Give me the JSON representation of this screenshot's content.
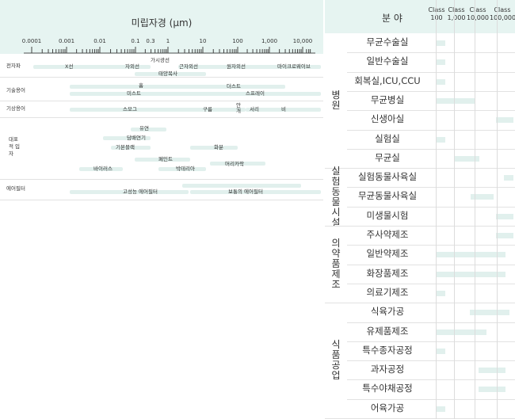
{
  "left_chart": {
    "title": "미립자경 (μm)",
    "scale": "log",
    "tick_labels": [
      "0.0001",
      "0.001",
      "0.01",
      "0.1",
      "0.3",
      "1",
      "10",
      "100",
      "1,000",
      "10,000"
    ],
    "categories": [
      "전자파",
      "기술용어",
      "기상용어",
      "대표적 입자",
      "에어필터"
    ],
    "labels": {
      "xray": "X선",
      "uv": "자외선",
      "visible": "가시광선",
      "infrared": "근자외선",
      "solar": "태양복사",
      "far_ir": "원자외선",
      "microwave": "마이크로웨이브",
      "fume": "흄",
      "dust": "더스트",
      "mist": "미스트",
      "spray": "스프레이",
      "smog": "스모그",
      "cloud": "구름",
      "fog": "안개",
      "frost": "서리",
      "rain": "비",
      "smoke": "유연",
      "tobacco": "담배연기",
      "carbon_black": "기본블랙",
      "pollen": "화분",
      "paint": "페인트",
      "hair": "머리카락",
      "bacteria": "박테리아",
      "virus": "바이러스",
      "hepa": "고성능 에어필터",
      "normal_filter": "보통의 에어필터"
    },
    "colors": {
      "band": "#e6f4f1",
      "bar": "#e1f0ed",
      "text": "#333333"
    }
  },
  "right_table": {
    "header_field": "분 야",
    "classes": [
      "Class\n100",
      "Class\n1,000",
      "Class\n10,000",
      "Class\n100,000"
    ],
    "groups": [
      {
        "label": "병\n원",
        "rows": [
          {
            "name": "무균수술실",
            "bar": [
              0,
              0.12
            ]
          },
          {
            "name": "일반수술실",
            "bar": [
              0,
              0.12
            ]
          },
          {
            "name": "회복실,ICU,CCU",
            "bar": [
              0,
              0.12
            ]
          },
          {
            "name": "무균병실",
            "bar": [
              0,
              0.5
            ]
          },
          {
            "name": "신생아실",
            "bar": [
              0.78,
              1
            ]
          },
          {
            "name": "실험실",
            "bar": [
              0,
              0.12
            ]
          },
          {
            "name": "무균실",
            "bar": [
              0.24,
              0.56
            ]
          }
        ]
      },
      {
        "label": "실\n험\n동\n물\n시\n설",
        "rows": [
          {
            "name": "실험동물사육실",
            "bar": [
              0.88,
              1
            ]
          },
          {
            "name": "무균동물사육실",
            "bar": [
              0.45,
              0.74
            ]
          },
          {
            "name": "미생물시험",
            "bar": [
              0.78,
              1
            ]
          }
        ]
      },
      {
        "label": "의\n약\n품\n제\n조",
        "rows": [
          {
            "name": "주사약제조",
            "bar": [
              0.78,
              1
            ]
          },
          {
            "name": "일반약제조",
            "bar": [
              0,
              0.9
            ]
          },
          {
            "name": "화장품제조",
            "bar": [
              0,
              0.9
            ]
          },
          {
            "name": "의료기제조",
            "bar": [
              0,
              0.12
            ]
          }
        ]
      },
      {
        "label": "식\n품\n공\n업",
        "rows": [
          {
            "name": "식육가공",
            "bar": [
              0.44,
              0.95
            ]
          },
          {
            "name": "유제품제조",
            "bar": [
              0,
              0.65
            ]
          },
          {
            "name": "특수종자공정",
            "bar": [
              0,
              0.12
            ]
          },
          {
            "name": "과자공정",
            "bar": [
              0.55,
              0.9
            ]
          },
          {
            "name": "특수야채공정",
            "bar": [
              0.55,
              0.9
            ]
          },
          {
            "name": "어육가공",
            "bar": [
              0,
              0.12
            ]
          }
        ]
      }
    ],
    "colors": {
      "header": "#e6f4f1",
      "bar": "#e1f0ed",
      "grid": "#dddddd"
    }
  }
}
